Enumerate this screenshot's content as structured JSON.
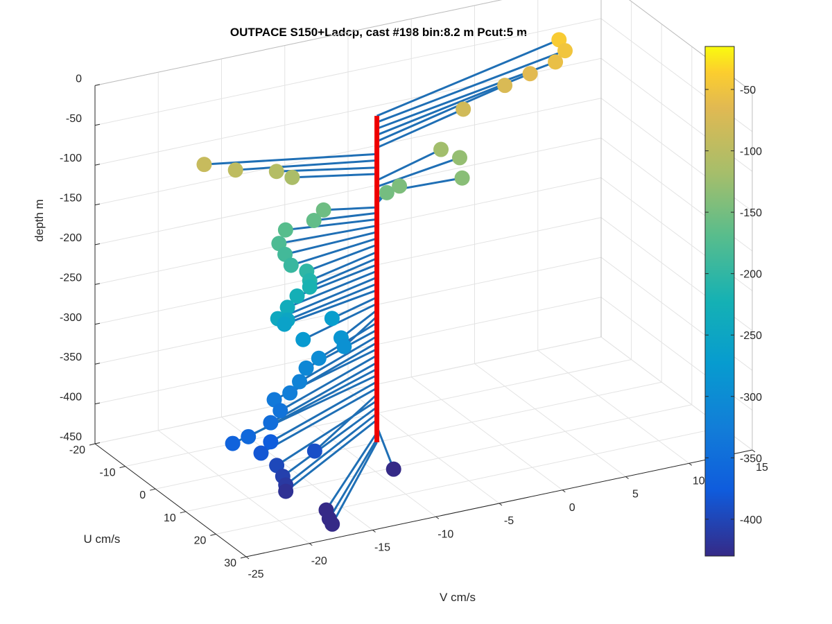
{
  "chart_data": {
    "type": "scatter",
    "view": "3d",
    "title": "OUTPACE S150+Ladcp, cast #198 bin:8.2 m  Pcut:5 m",
    "xlabel": "V cm/s",
    "ylabel": "U cm/s",
    "zlabel": "depth m",
    "xlim": [
      -25,
      15
    ],
    "ylim": [
      -20,
      30
    ],
    "zlim": [
      -450,
      0
    ],
    "x_ticks": [
      "-25",
      "-20",
      "-15",
      "-10",
      "-5",
      "0",
      "5",
      "10",
      "15"
    ],
    "y_ticks": [
      "-20",
      "-10",
      "0",
      "10",
      "20",
      "30"
    ],
    "z_ticks": [
      "0",
      "-50",
      "-100",
      "-150",
      "-200",
      "-250",
      "-300",
      "-350",
      "-400",
      "-450"
    ],
    "grid": true,
    "colorbar": {
      "colormap": "parula",
      "range": [
        -430,
        -15
      ],
      "ticks": [
        "-50",
        "-100",
        "-150",
        "-200",
        "-250",
        "-300",
        "-350",
        "-400"
      ]
    },
    "anchor": {
      "x": -7.5,
      "y": 0,
      "depth_range": [
        -450,
        -40
      ],
      "color": "#ee0000"
    },
    "stick_color": "#1f6fb5",
    "points": [
      {
        "depth": -40,
        "v": 10,
        "u": -13
      },
      {
        "depth": -48,
        "v": 10,
        "u": -11
      },
      {
        "depth": -56,
        "v": 9,
        "u": -10
      },
      {
        "depth": -64,
        "v": 7,
        "u": -10
      },
      {
        "depth": -72,
        "v": 5,
        "u": -10
      },
      {
        "depth": -80,
        "v": 1,
        "u": -7
      },
      {
        "depth": -88,
        "v": -19,
        "u": -9
      },
      {
        "depth": -96,
        "v": -17,
        "u": -7
      },
      {
        "depth": -105,
        "v": -14,
        "u": -6
      },
      {
        "depth": -113,
        "v": -13,
        "u": -5
      },
      {
        "depth": -121,
        "v": -1,
        "u": -6
      },
      {
        "depth": -129,
        "v": 0,
        "u": -4
      },
      {
        "depth": -137,
        "v": -1,
        "u": 1
      },
      {
        "depth": -145,
        "v": -5,
        "u": -3
      },
      {
        "depth": -150,
        "v": -6,
        "u": -3
      },
      {
        "depth": -155,
        "v": -11,
        "u": -3
      },
      {
        "depth": -162,
        "v": -12,
        "u": -2
      },
      {
        "depth": -170,
        "v": -14,
        "u": -3
      },
      {
        "depth": -178,
        "v": -15,
        "u": -1
      },
      {
        "depth": -186,
        "v": -15,
        "u": 1
      },
      {
        "depth": -194,
        "v": -15,
        "u": 3
      },
      {
        "depth": -202,
        "v": -14,
        "u": 4
      },
      {
        "depth": -211,
        "v": -14,
        "u": 5
      },
      {
        "depth": -219,
        "v": -14,
        "u": 5
      },
      {
        "depth": -227,
        "v": -15,
        "u": 5
      },
      {
        "depth": -235,
        "v": -16,
        "u": 6
      },
      {
        "depth": -243,
        "v": -17,
        "u": 7
      },
      {
        "depth": -251,
        "v": -16,
        "u": 6
      },
      {
        "depth": -259,
        "v": -16,
        "u": 5
      },
      {
        "depth": -268,
        "v": -12,
        "u": 4
      },
      {
        "depth": -276,
        "v": -15,
        "u": 7
      },
      {
        "depth": -284,
        "v": -12,
        "u": 7
      },
      {
        "depth": -292,
        "v": -12,
        "u": 8
      },
      {
        "depth": -300,
        "v": -14,
        "u": 8
      },
      {
        "depth": -309,
        "v": -15,
        "u": 8
      },
      {
        "depth": -317,
        "v": -16,
        "u": 10
      },
      {
        "depth": -325,
        "v": -17,
        "u": 11
      },
      {
        "depth": -333,
        "v": -18,
        "u": 10
      },
      {
        "depth": -341,
        "v": -18,
        "u": 12
      },
      {
        "depth": -350,
        "v": -19,
        "u": 13
      },
      {
        "depth": -358,
        "v": -21,
        "u": 14
      },
      {
        "depth": -366,
        "v": -22,
        "u": 13
      },
      {
        "depth": -374,
        "v": -19,
        "u": 13
      },
      {
        "depth": -382,
        "v": -20,
        "u": 14
      },
      {
        "depth": -390,
        "v": -16,
        "u": 15
      },
      {
        "depth": -398,
        "v": -19,
        "u": 15
      },
      {
        "depth": -406,
        "v": -19,
        "u": 17
      },
      {
        "depth": -414,
        "v": -19,
        "u": 18
      },
      {
        "depth": -422,
        "v": -19,
        "u": 18
      },
      {
        "depth": -430,
        "v": -10,
        "u": 16
      },
      {
        "depth": -438,
        "v": -17,
        "u": 23
      },
      {
        "depth": -446,
        "v": -17,
        "u": 24
      },
      {
        "depth": -450,
        "v": -17,
        "u": 25
      }
    ]
  }
}
